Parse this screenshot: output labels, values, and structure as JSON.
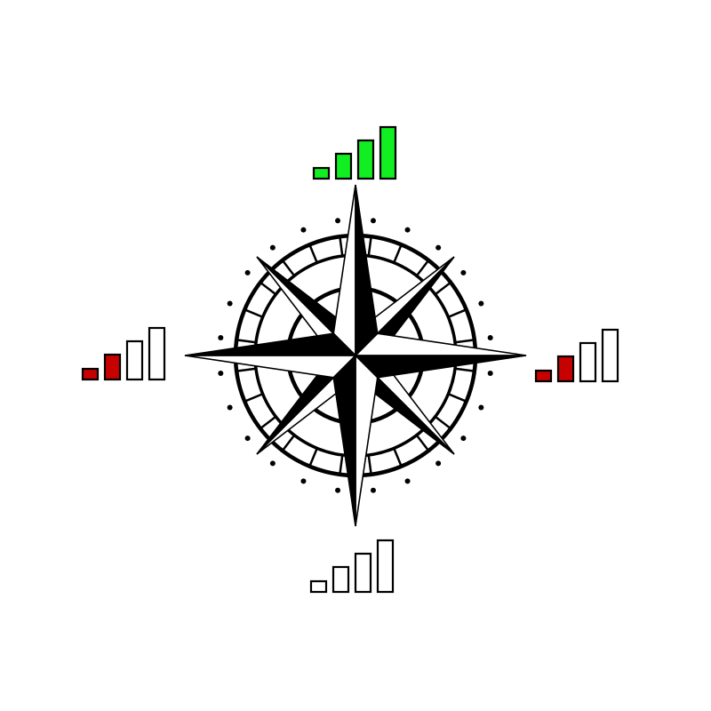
{
  "colors": {
    "background": "#ffffff",
    "ink": "#000000",
    "paper": "#ffffff",
    "strong": "#11ee22",
    "weak": "#c70000",
    "empty": "#ffffff"
  },
  "compass": {
    "rose": "8-point-compass-rose",
    "rings": 4,
    "ticks": 24,
    "dots": 24
  },
  "signals": [
    {
      "direction": "north",
      "bars_total": 4,
      "bars_filled": 4,
      "level": "strong"
    },
    {
      "direction": "east",
      "bars_total": 4,
      "bars_filled": 2,
      "level": "weak"
    },
    {
      "direction": "south",
      "bars_total": 4,
      "bars_filled": 0,
      "level": "empty"
    },
    {
      "direction": "west",
      "bars_total": 4,
      "bars_filled": 2,
      "level": "weak"
    }
  ]
}
